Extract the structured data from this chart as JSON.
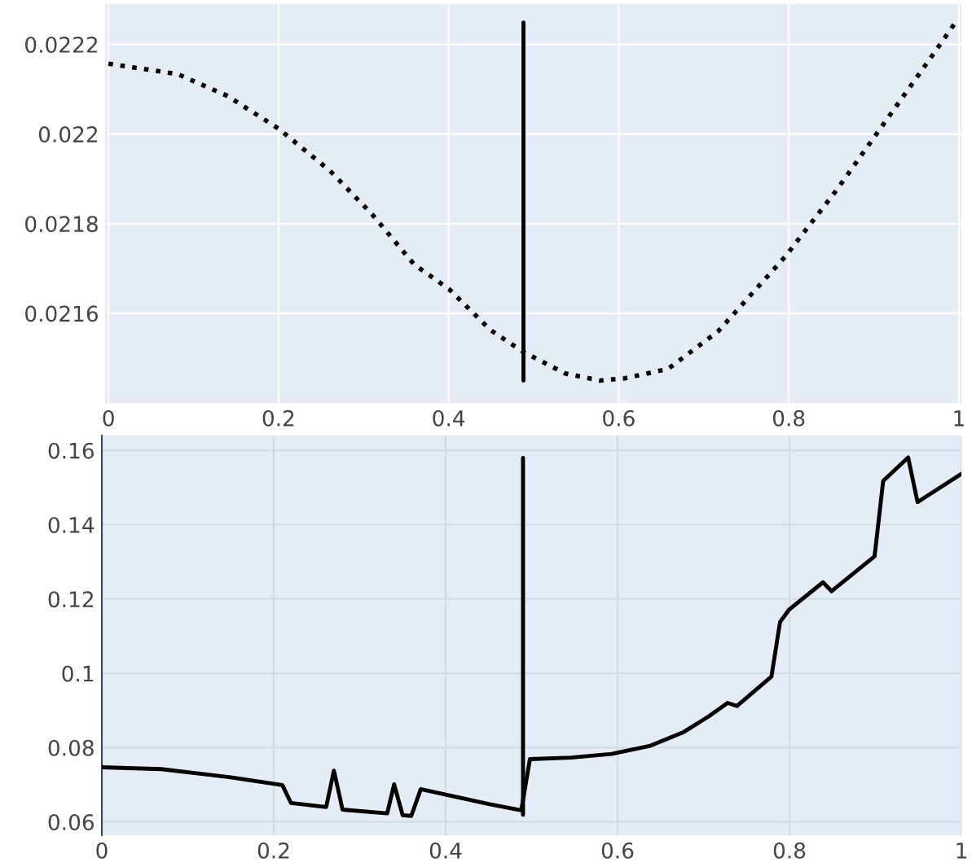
{
  "chart_data": [
    {
      "type": "line",
      "xlim": [
        -0.003,
        1.003
      ],
      "ylim": [
        0.0214,
        0.02229
      ],
      "xticks": [
        0,
        0.2,
        0.4,
        0.6,
        0.8,
        1
      ],
      "yticks": [
        0.0216,
        0.0218,
        0.022,
        0.0222
      ],
      "grid": true,
      "legend": false,
      "series": [
        {
          "color": "#000000",
          "line_style": "dotted",
          "x": [
            0,
            0.081,
            0.14,
            0.2,
            0.2605,
            0.31,
            0.3595,
            0.4006,
            0.449,
            0.4877,
            0.537,
            0.5775,
            0.607,
            0.658,
            0.717,
            0.796,
            0.8566,
            0.926,
            0.9665,
            0.996
          ],
          "values": [
            0.022157,
            0.022134,
            0.022085,
            0.022012,
            0.021918,
            0.021821,
            0.021709,
            0.021654,
            0.021563,
            0.021514,
            0.021466,
            0.02145,
            0.021455,
            0.021476,
            0.02156,
            0.021727,
            0.021876,
            0.022061,
            0.022169,
            0.022249
          ]
        },
        {
          "color": "#000000",
          "line_style": "solid",
          "x": [
            0.488,
            0.488
          ],
          "values": [
            0.022249,
            0.02145
          ]
        }
      ]
    },
    {
      "type": "line",
      "xlim": [
        0,
        1
      ],
      "ylim": [
        0.0564,
        0.164
      ],
      "xticks": [
        0,
        0.2,
        0.4,
        0.6,
        0.8,
        1
      ],
      "yticks": [
        0.06,
        0.08,
        0.1,
        0.12,
        0.14,
        0.16
      ],
      "grid": true,
      "legend": false,
      "series": [
        {
          "color": "#000000",
          "line_style": "solid",
          "x": [
            0,
            0.069,
            0.15,
            0.21,
            0.22,
            0.261,
            0.27,
            0.28,
            0.332,
            0.34,
            0.35,
            0.36,
            0.371,
            0.45,
            0.488,
            0.498,
            0.5456,
            0.593,
            0.637,
            0.677,
            0.706,
            0.728,
            0.739,
            0.779,
            0.789,
            0.799,
            0.839,
            0.849,
            0.899,
            0.909,
            0.938,
            0.949,
            1
          ],
          "values": [
            0.0747,
            0.0742,
            0.072,
            0.0699,
            0.0651,
            0.064,
            0.0738,
            0.0633,
            0.0623,
            0.0701,
            0.0618,
            0.0616,
            0.0688,
            0.0648,
            0.0631,
            0.0769,
            0.0773,
            0.0783,
            0.0804,
            0.0842,
            0.0884,
            0.092,
            0.0912,
            0.0991,
            0.1138,
            0.117,
            0.1245,
            0.1221,
            0.1315,
            0.1518,
            0.1581,
            0.1461,
            0.1537
          ]
        },
        {
          "color": "#000000",
          "line_style": "solid",
          "x": [
            0.49,
            0.49
          ],
          "values": [
            0.158,
            0.0619
          ]
        }
      ]
    }
  ]
}
